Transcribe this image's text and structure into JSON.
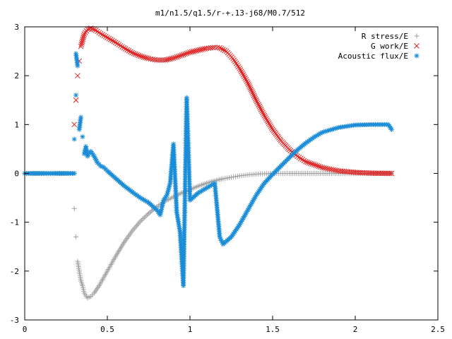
{
  "chart_data": {
    "type": "scatter",
    "title": "m1/n1.5/q1.5/r-+.13-j68/M0.7/512",
    "xlabel": "",
    "ylabel": "",
    "xlim": [
      0,
      2.5
    ],
    "ylim": [
      -3,
      3
    ],
    "x_ticks": [
      "0",
      "0.5",
      "1",
      "1.5",
      "2",
      "2.5"
    ],
    "y_ticks": [
      "3",
      "2",
      "1",
      "0",
      "-1",
      "-2",
      "-3"
    ],
    "x_tick_values": [
      0,
      0.5,
      1,
      1.5,
      2,
      2.5
    ],
    "y_tick_values": [
      3,
      2,
      1,
      0,
      -1,
      -2,
      -3
    ],
    "grid": false,
    "legend_position": "top-right",
    "series": [
      {
        "name": "R stress/E",
        "marker": "plus",
        "color": "#a0a0a0",
        "x": [
          0.0,
          0.3,
          0.3,
          0.31,
          0.32,
          0.34,
          0.35,
          0.36,
          0.38,
          0.4,
          0.42,
          0.45,
          0.5,
          0.55,
          0.6,
          0.65,
          0.7,
          0.75,
          0.8,
          0.85,
          0.9,
          0.95,
          1.0,
          1.05,
          1.1,
          1.15,
          1.2,
          1.25,
          1.3,
          1.35,
          1.4,
          1.45,
          1.5,
          1.55,
          1.6,
          1.7,
          1.8,
          1.9,
          2.0,
          2.1,
          2.22
        ],
        "y": [
          0.0,
          0.0,
          -0.72,
          -1.3,
          -1.8,
          -2.2,
          -2.3,
          -2.45,
          -2.55,
          -2.52,
          -2.45,
          -2.3,
          -2.0,
          -1.7,
          -1.42,
          -1.18,
          -0.98,
          -0.82,
          -0.68,
          -0.57,
          -0.48,
          -0.4,
          -0.33,
          -0.26,
          -0.2,
          -0.15,
          -0.11,
          -0.08,
          -0.05,
          -0.03,
          -0.015,
          -0.005,
          0.0,
          0.0,
          0.0,
          0.0,
          0.0,
          0.0,
          0.0,
          0.0,
          0.0
        ]
      },
      {
        "name": "G work/E",
        "marker": "cross",
        "color": "#e02020",
        "x": [
          0.3,
          0.31,
          0.32,
          0.33,
          0.34,
          0.36,
          0.38,
          0.4,
          0.43,
          0.46,
          0.5,
          0.55,
          0.6,
          0.65,
          0.7,
          0.75,
          0.8,
          0.85,
          0.9,
          0.95,
          1.0,
          1.05,
          1.1,
          1.15,
          1.18,
          1.22,
          1.26,
          1.3,
          1.35,
          1.4,
          1.45,
          1.5,
          1.55,
          1.6,
          1.65,
          1.7,
          1.8,
          1.9,
          2.0,
          2.1,
          2.22
        ],
        "y": [
          1.0,
          1.5,
          2.0,
          2.3,
          2.6,
          2.85,
          2.95,
          2.97,
          2.93,
          2.86,
          2.78,
          2.68,
          2.57,
          2.47,
          2.4,
          2.35,
          2.32,
          2.32,
          2.36,
          2.42,
          2.48,
          2.52,
          2.56,
          2.58,
          2.57,
          2.5,
          2.35,
          2.15,
          1.85,
          1.5,
          1.18,
          0.9,
          0.67,
          0.49,
          0.35,
          0.24,
          0.12,
          0.05,
          0.02,
          0.005,
          0.0
        ]
      },
      {
        "name": "Acoustic flux/E",
        "marker": "star",
        "color": "#1a8cd8",
        "x": [
          0.0,
          0.1,
          0.2,
          0.3,
          0.3,
          0.31,
          0.31,
          0.32,
          0.33,
          0.34,
          0.35,
          0.36,
          0.37,
          0.38,
          0.39,
          0.4,
          0.42,
          0.44,
          0.46,
          0.48,
          0.5,
          0.55,
          0.6,
          0.65,
          0.7,
          0.75,
          0.8,
          0.82,
          0.84,
          0.86,
          0.88,
          0.9,
          0.92,
          0.94,
          0.96,
          0.98,
          1.0,
          1.05,
          1.1,
          1.15,
          1.18,
          1.2,
          1.25,
          1.3,
          1.35,
          1.4,
          1.45,
          1.5,
          1.55,
          1.6,
          1.65,
          1.7,
          1.75,
          1.8,
          1.9,
          2.0,
          2.1,
          2.2,
          2.22
        ],
        "y": [
          0.0,
          0.0,
          0.0,
          0.0,
          0.7,
          1.6,
          2.45,
          2.2,
          0.9,
          1.15,
          0.75,
          0.4,
          0.55,
          0.35,
          0.42,
          0.45,
          0.35,
          0.22,
          0.15,
          0.12,
          0.05,
          -0.1,
          -0.25,
          -0.38,
          -0.5,
          -0.6,
          -0.75,
          -0.85,
          -0.55,
          -0.45,
          -0.2,
          0.6,
          -0.8,
          -1.2,
          -2.3,
          1.55,
          -0.55,
          -0.4,
          -0.3,
          -0.2,
          -1.3,
          -1.45,
          -1.3,
          -1.05,
          -0.75,
          -0.45,
          -0.2,
          -0.02,
          0.15,
          0.32,
          0.48,
          0.62,
          0.74,
          0.84,
          0.94,
          0.99,
          1.0,
          1.0,
          0.9
        ]
      }
    ]
  }
}
